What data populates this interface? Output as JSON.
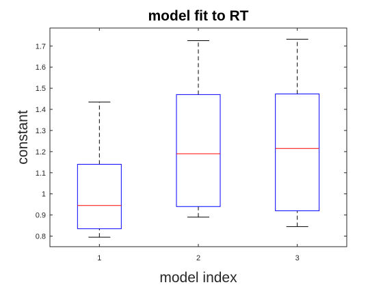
{
  "chart_data": {
    "type": "boxplot",
    "title": "model fit to RT",
    "xlabel": "model index",
    "ylabel": "constant",
    "categories": [
      "1",
      "2",
      "3"
    ],
    "ylim": [
      0.75,
      1.785
    ],
    "yticks": [
      0.8,
      0.9,
      1,
      1.1,
      1.2,
      1.3,
      1.4,
      1.5,
      1.6,
      1.7
    ],
    "ytick_labels": [
      "0.8",
      "0.9",
      "1",
      "1.1",
      "1.2",
      "1.3",
      "1.4",
      "1.5",
      "1.6",
      "1.7"
    ],
    "grid": false,
    "boxes": [
      {
        "category": "1",
        "whisker_low": 0.795,
        "q1": 0.835,
        "median": 0.945,
        "q3": 1.14,
        "whisker_high": 1.435
      },
      {
        "category": "2",
        "whisker_low": 0.89,
        "q1": 0.94,
        "median": 1.19,
        "q3": 1.47,
        "whisker_high": 1.725
      },
      {
        "category": "3",
        "whisker_low": 0.845,
        "q1": 0.92,
        "median": 1.215,
        "q3": 1.473,
        "whisker_high": 1.732
      }
    ],
    "colors": {
      "box": "#0000ff",
      "median": "#ff0000",
      "whisker": "#000000",
      "axis": "#262626"
    }
  }
}
